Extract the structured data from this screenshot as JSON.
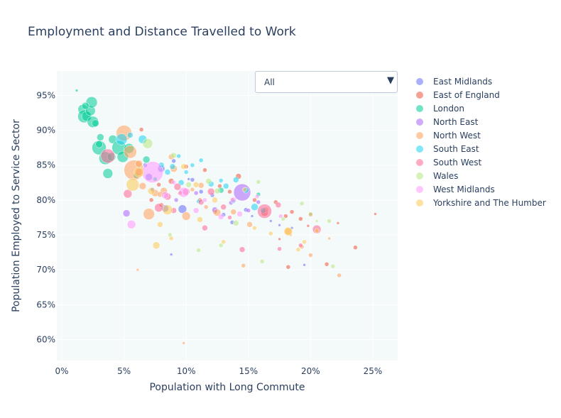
{
  "chart_data": {
    "type": "scatter",
    "title": "Employment and Distance Travelled to Work",
    "xlabel": "Population with Long Commute",
    "ylabel": "Population Employed to Service Sector",
    "xlim": [
      -0.004,
      0.27
    ],
    "ylim": [
      0.57,
      0.985
    ],
    "x_ticks": [
      0,
      0.05,
      0.1,
      0.15,
      0.2,
      0.25
    ],
    "x_tick_labels": [
      "0%",
      "5%",
      "10%",
      "15%",
      "20%",
      "25%"
    ],
    "y_ticks": [
      0.6,
      0.65,
      0.7,
      0.75,
      0.8,
      0.85,
      0.9,
      0.95
    ],
    "y_tick_labels": [
      "60%",
      "65%",
      "70%",
      "75%",
      "80%",
      "85%",
      "90%",
      "95%"
    ],
    "grid": true,
    "legend_position": "right",
    "plot_background": "#f4f9fa",
    "marker_opacity": 0.55,
    "series": [
      {
        "name": "East Midlands",
        "color": "#636efa",
        "points": [
          [
            0.067,
            0.85,
            3
          ],
          [
            0.07,
            0.833,
            5
          ],
          [
            0.08,
            0.845,
            5
          ],
          [
            0.083,
            0.788,
            5
          ],
          [
            0.097,
            0.787,
            6
          ],
          [
            0.09,
            0.856,
            3
          ],
          [
            0.105,
            0.829,
            3
          ],
          [
            0.112,
            0.812,
            3
          ],
          [
            0.121,
            0.807,
            3
          ],
          [
            0.13,
            0.779,
            3
          ],
          [
            0.137,
            0.768,
            3
          ],
          [
            0.148,
            0.786,
            3
          ],
          [
            0.153,
            0.777,
            2
          ],
          [
            0.168,
            0.77,
            2
          ],
          [
            0.175,
            0.764,
            2
          ],
          [
            0.185,
            0.76,
            2
          ],
          [
            0.195,
            0.707,
            2
          ],
          [
            0.073,
            0.815,
            3
          ],
          [
            0.088,
            0.722,
            2
          ],
          [
            0.102,
            0.83,
            2
          ]
        ]
      },
      {
        "name": "East of England",
        "color": "#ef553b",
        "points": [
          [
            0.064,
            0.901,
            3
          ],
          [
            0.078,
            0.822,
            3
          ],
          [
            0.088,
            0.827,
            4
          ],
          [
            0.1,
            0.848,
            3
          ],
          [
            0.115,
            0.843,
            3
          ],
          [
            0.127,
            0.82,
            3
          ],
          [
            0.135,
            0.812,
            3
          ],
          [
            0.142,
            0.834,
            4
          ],
          [
            0.155,
            0.8,
            3
          ],
          [
            0.163,
            0.782,
            5
          ],
          [
            0.172,
            0.797,
            3
          ],
          [
            0.18,
            0.777,
            3
          ],
          [
            0.185,
            0.783,
            3
          ],
          [
            0.192,
            0.773,
            3
          ],
          [
            0.2,
            0.779,
            3
          ],
          [
            0.213,
            0.708,
            3
          ],
          [
            0.236,
            0.732,
            3
          ],
          [
            0.252,
            0.78,
            2
          ],
          [
            0.111,
            0.8,
            3
          ],
          [
            0.095,
            0.81,
            3
          ],
          [
            0.08,
            0.793,
            3
          ],
          [
            0.072,
            0.8,
            3
          ],
          [
            0.123,
            0.783,
            3
          ],
          [
            0.137,
            0.8,
            3
          ],
          [
            0.182,
            0.704,
            3
          ],
          [
            0.175,
            0.744,
            2
          ],
          [
            0.198,
            0.763,
            2
          ],
          [
            0.222,
            0.767,
            2
          ]
        ]
      },
      {
        "name": "London",
        "color": "#00cc96",
        "points": [
          [
            0.012,
            0.957,
            2
          ],
          [
            0.017,
            0.93,
            7
          ],
          [
            0.018,
            0.92,
            9
          ],
          [
            0.02,
            0.92,
            7
          ],
          [
            0.023,
            0.928,
            7
          ],
          [
            0.024,
            0.94,
            8
          ],
          [
            0.025,
            0.912,
            8
          ],
          [
            0.019,
            0.935,
            5
          ],
          [
            0.027,
            0.91,
            5
          ],
          [
            0.03,
            0.875,
            10
          ],
          [
            0.031,
            0.89,
            5
          ],
          [
            0.035,
            0.86,
            9
          ],
          [
            0.037,
            0.838,
            7
          ],
          [
            0.04,
            0.862,
            6
          ],
          [
            0.041,
            0.887,
            6
          ],
          [
            0.046,
            0.875,
            10
          ],
          [
            0.049,
            0.862,
            8
          ],
          [
            0.054,
            0.874,
            7
          ],
          [
            0.06,
            0.835,
            4
          ],
          [
            0.068,
            0.858,
            5
          ],
          [
            0.03,
            0.88,
            5
          ],
          [
            0.128,
            0.814,
            4
          ],
          [
            0.158,
            0.808,
            3
          ],
          [
            0.075,
            0.83,
            3
          ]
        ]
      },
      {
        "name": "North East",
        "color": "#ab63fa",
        "points": [
          [
            0.108,
            0.81,
            3
          ],
          [
            0.145,
            0.811,
            12
          ],
          [
            0.052,
            0.781,
            5
          ],
          [
            0.123,
            0.786,
            4
          ],
          [
            0.136,
            0.796,
            3
          ],
          [
            0.158,
            0.797,
            3
          ],
          [
            0.092,
            0.8,
            3
          ],
          [
            0.15,
            0.785,
            3
          ]
        ]
      },
      {
        "name": "North West",
        "color": "#ffa15a",
        "points": [
          [
            0.05,
            0.896,
            11
          ],
          [
            0.055,
            0.869,
            9
          ],
          [
            0.058,
            0.843,
            14
          ],
          [
            0.062,
            0.852,
            5
          ],
          [
            0.065,
            0.82,
            5
          ],
          [
            0.07,
            0.78,
            8
          ],
          [
            0.075,
            0.81,
            5
          ],
          [
            0.082,
            0.813,
            5
          ],
          [
            0.09,
            0.845,
            5
          ],
          [
            0.1,
            0.777,
            6
          ],
          [
            0.112,
            0.821,
            4
          ],
          [
            0.125,
            0.782,
            5
          ],
          [
            0.138,
            0.783,
            4
          ],
          [
            0.151,
            0.765,
            4
          ],
          [
            0.164,
            0.786,
            4
          ],
          [
            0.182,
            0.755,
            5
          ],
          [
            0.193,
            0.733,
            3
          ],
          [
            0.2,
            0.721,
            3
          ],
          [
            0.223,
            0.692,
            3
          ],
          [
            0.061,
            0.7,
            2
          ],
          [
            0.098,
            0.595,
            2
          ],
          [
            0.088,
            0.862,
            4
          ],
          [
            0.079,
            0.808,
            4
          ],
          [
            0.146,
            0.706,
            3
          ],
          [
            0.184,
            0.75,
            2
          ],
          [
            0.215,
            0.745,
            2
          ],
          [
            0.105,
            0.815,
            3
          ],
          [
            0.116,
            0.79,
            3
          ],
          [
            0.205,
            0.756,
            3
          ]
        ]
      },
      {
        "name": "South East",
        "color": "#19d3f3",
        "points": [
          [
            0.048,
            0.887,
            8
          ],
          [
            0.065,
            0.887,
            6
          ],
          [
            0.055,
            0.893,
            4
          ],
          [
            0.085,
            0.84,
            4
          ],
          [
            0.089,
            0.848,
            4
          ],
          [
            0.096,
            0.825,
            4
          ],
          [
            0.105,
            0.85,
            3
          ],
          [
            0.112,
            0.857,
            3
          ],
          [
            0.12,
            0.823,
            4
          ],
          [
            0.132,
            0.82,
            4
          ],
          [
            0.14,
            0.829,
            4
          ],
          [
            0.148,
            0.814,
            4
          ],
          [
            0.155,
            0.79,
            5
          ],
          [
            0.162,
            0.785,
            4
          ],
          [
            0.094,
            0.863,
            3
          ],
          [
            0.1,
            0.84,
            3
          ],
          [
            0.11,
            0.798,
            3
          ],
          [
            0.128,
            0.828,
            3
          ],
          [
            0.138,
            0.798,
            3
          ],
          [
            0.08,
            0.85,
            4
          ]
        ]
      },
      {
        "name": "South West",
        "color": "#ff6692",
        "points": [
          [
            0.037,
            0.863,
            10
          ],
          [
            0.053,
            0.809,
            6
          ],
          [
            0.062,
            0.84,
            5
          ],
          [
            0.078,
            0.789,
            6
          ],
          [
            0.085,
            0.805,
            5
          ],
          [
            0.093,
            0.819,
            5
          ],
          [
            0.1,
            0.812,
            5
          ],
          [
            0.112,
            0.797,
            4
          ],
          [
            0.12,
            0.812,
            5
          ],
          [
            0.13,
            0.79,
            4
          ],
          [
            0.145,
            0.729,
            4
          ],
          [
            0.163,
            0.784,
            10
          ],
          [
            0.174,
            0.793,
            4
          ],
          [
            0.205,
            0.758,
            6
          ],
          [
            0.09,
            0.785,
            4
          ],
          [
            0.115,
            0.76,
            4
          ],
          [
            0.135,
            0.775,
            3
          ],
          [
            0.175,
            0.73,
            3
          ],
          [
            0.192,
            0.735,
            3
          ]
        ]
      },
      {
        "name": "Wales",
        "color": "#b6e880",
        "points": [
          [
            0.069,
            0.881,
            7
          ],
          [
            0.09,
            0.864,
            4
          ],
          [
            0.102,
            0.822,
            4
          ],
          [
            0.118,
            0.827,
            4
          ],
          [
            0.125,
            0.813,
            4
          ],
          [
            0.14,
            0.767,
            4
          ],
          [
            0.158,
            0.826,
            3
          ],
          [
            0.178,
            0.773,
            3
          ],
          [
            0.193,
            0.795,
            3
          ],
          [
            0.2,
            0.78,
            3
          ],
          [
            0.215,
            0.77,
            3
          ],
          [
            0.218,
            0.705,
            3
          ],
          [
            0.11,
            0.728,
            3
          ],
          [
            0.128,
            0.735,
            3
          ],
          [
            0.161,
            0.712,
            3
          ],
          [
            0.087,
            0.75,
            3
          ],
          [
            0.205,
            0.77,
            2
          ]
        ]
      },
      {
        "name": "West Midlands",
        "color": "#ff97ff",
        "points": [
          [
            0.056,
            0.765,
            6
          ],
          [
            0.073,
            0.84,
            15
          ],
          [
            0.083,
            0.807,
            5
          ],
          [
            0.098,
            0.811,
            7
          ],
          [
            0.108,
            0.785,
            4
          ],
          [
            0.128,
            0.776,
            4
          ],
          [
            0.138,
            0.8,
            4
          ],
          [
            0.143,
            0.78,
            4
          ],
          [
            0.157,
            0.805,
            3
          ],
          [
            0.176,
            0.777,
            3
          ],
          [
            0.115,
            0.8,
            3
          ],
          [
            0.09,
            0.825,
            3
          ]
        ]
      },
      {
        "name": "Yorkshire and The Humber",
        "color": "#fecb52",
        "points": [
          [
            0.057,
            0.822,
            9
          ],
          [
            0.062,
            0.84,
            7
          ],
          [
            0.072,
            0.813,
            5
          ],
          [
            0.079,
            0.765,
            4
          ],
          [
            0.085,
            0.786,
            7
          ],
          [
            0.076,
            0.735,
            5
          ],
          [
            0.098,
            0.848,
            4
          ],
          [
            0.108,
            0.822,
            4
          ],
          [
            0.111,
            0.772,
            4
          ],
          [
            0.123,
            0.8,
            4
          ],
          [
            0.147,
            0.815,
            3
          ],
          [
            0.168,
            0.752,
            3
          ],
          [
            0.182,
            0.755,
            6
          ],
          [
            0.19,
            0.729,
            3
          ],
          [
            0.205,
            0.756,
            3
          ],
          [
            0.088,
            0.745,
            3
          ],
          [
            0.13,
            0.74,
            3
          ],
          [
            0.155,
            0.76,
            3
          ],
          [
            0.195,
            0.74,
            3
          ]
        ]
      }
    ]
  },
  "dropdown": {
    "label": "All",
    "arrow": "▼"
  }
}
